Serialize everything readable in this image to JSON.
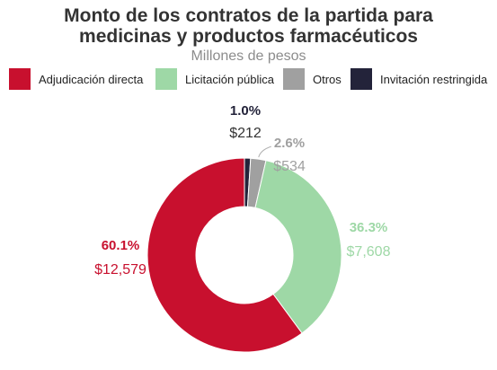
{
  "title_line1": "Monto de los contratos de la partida para",
  "title_line2": "medicinas y productos farmacéuticos",
  "subtitle": "Millones de pesos",
  "legend": [
    {
      "label": "Adjudicación directa",
      "color": "#c8102e"
    },
    {
      "label": "Licitación pública",
      "color": "#9ed8a6"
    },
    {
      "label": "Otros",
      "color": "#a0a0a0"
    },
    {
      "label": "Invitación restringida",
      "color": "#23233a"
    }
  ],
  "chart_data": {
    "type": "pie",
    "title": "Monto de los contratos de la partida para medicinas y productos farmacéuticos",
    "subtitle": "Millones de pesos",
    "legend_position": "top",
    "slices": [
      {
        "name": "Invitación restringida",
        "value": 212,
        "percent": 1.0,
        "value_label": "$212",
        "percent_label": "1.0%",
        "color": "#23233a"
      },
      {
        "name": "Otros",
        "value": 534,
        "percent": 2.6,
        "value_label": "$534",
        "percent_label": "2.6%",
        "color": "#a0a0a0"
      },
      {
        "name": "Licitación pública",
        "value": 7608,
        "percent": 36.3,
        "value_label": "$7,608",
        "percent_label": "36.3%",
        "color": "#9ed8a6"
      },
      {
        "name": "Adjudicación directa",
        "value": 12579,
        "percent": 60.1,
        "value_label": "$12,579",
        "percent_label": "60.1%",
        "color": "#c8102e"
      }
    ]
  }
}
